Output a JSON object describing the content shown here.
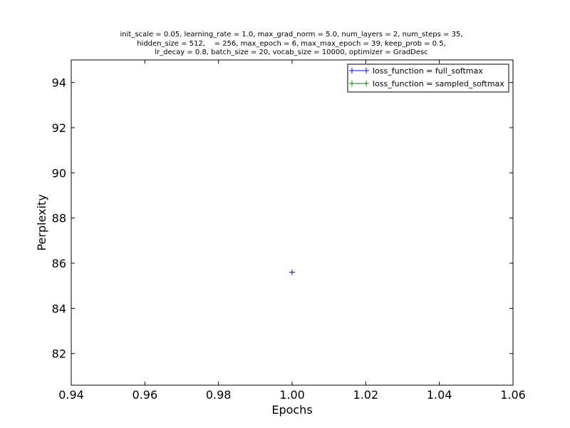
{
  "chart_data": {
    "type": "line",
    "title_lines": [
      "init_scale = 0.05, learning_rate = 1.0, max_grad_norm = 5.0, num_layers = 2, num_steps = 35,",
      "hidden_size = 512,    = 256, max_epoch = 6, max_max_epoch = 39, keep_prob = 0.5,",
      "lr_decay = 0.8, batch_size = 20, vocab_size = 10000, optimizer = GradDesc"
    ],
    "xlabel": "Epochs",
    "ylabel": "Perplexity",
    "xlim": [
      0.94,
      1.06
    ],
    "ylim": [
      80.6,
      95
    ],
    "xticks": [
      "0.94",
      "0.96",
      "0.98",
      "1.00",
      "1.02",
      "1.04",
      "1.06"
    ],
    "yticks": [
      "82",
      "84",
      "86",
      "88",
      "90",
      "92",
      "94"
    ],
    "legend_position": "top-right",
    "series": [
      {
        "name": "loss_function = full_softmax",
        "color": "#0000ff",
        "marker": "+",
        "x": [
          1.0
        ],
        "y": [
          85.6
        ]
      },
      {
        "name": "loss_function = sampled_softmax",
        "color": "#008000",
        "marker": "+",
        "x": [],
        "y": []
      }
    ]
  }
}
